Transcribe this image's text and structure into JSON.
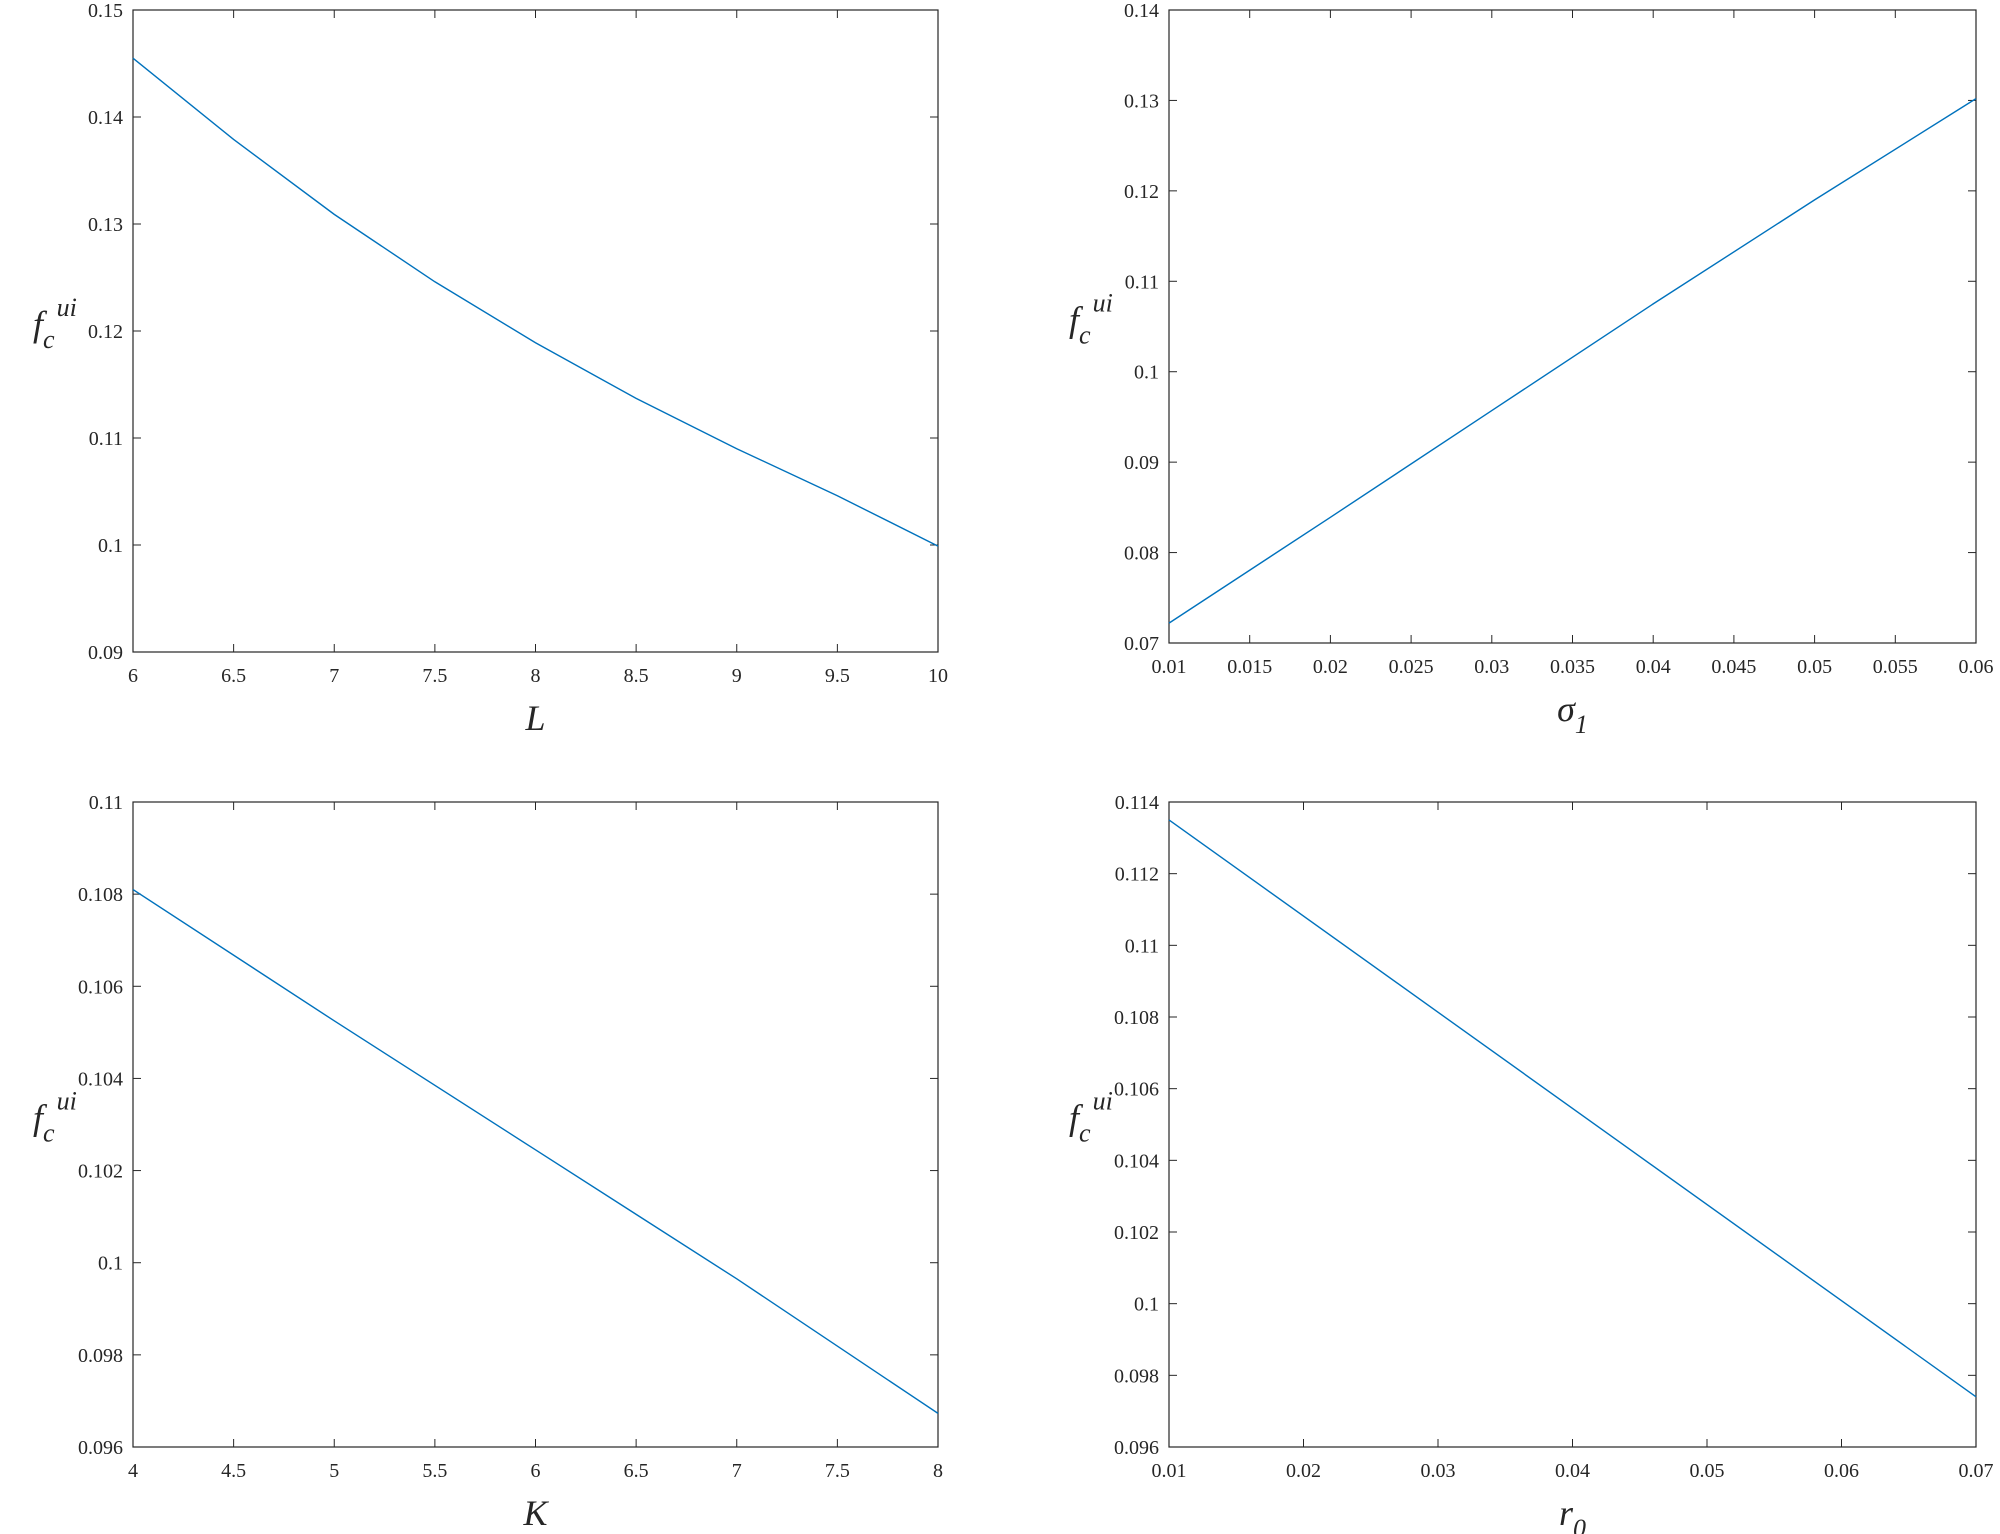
{
  "chart_data": [
    {
      "type": "line",
      "xlabel": "L",
      "ylabel": {
        "base": "f",
        "sub": "c",
        "sup": "ui"
      },
      "xlim": [
        6,
        10
      ],
      "ylim": [
        0.09,
        0.15
      ],
      "xticks": [
        "6",
        "6.5",
        "7",
        "7.5",
        "8",
        "8.5",
        "9",
        "9.5",
        "10"
      ],
      "yticks": [
        "0.09",
        "0.1",
        "0.11",
        "0.12",
        "0.13",
        "0.14",
        "0.15"
      ],
      "grid": false,
      "series": [
        {
          "color": "#0072BD",
          "x": [
            6,
            6.5,
            7,
            7.5,
            8,
            8.5,
            9,
            9.5,
            10
          ],
          "y": [
            0.1455,
            0.1379,
            0.1309,
            0.1246,
            0.1189,
            0.1137,
            0.109,
            0.1046,
            0.0999
          ]
        }
      ]
    },
    {
      "type": "line",
      "xlabel": {
        "base": "σ",
        "sub": "1"
      },
      "ylabel": {
        "base": "f",
        "sub": "c",
        "sup": "ui"
      },
      "xlim": [
        0.01,
        0.06
      ],
      "ylim": [
        0.07,
        0.14
      ],
      "xticks": [
        "0.01",
        "0.015",
        "0.02",
        "0.025",
        "0.03",
        "0.035",
        "0.04",
        "0.045",
        "0.05",
        "0.055",
        "0.06"
      ],
      "yticks": [
        "0.07",
        "0.08",
        "0.09",
        "0.1",
        "0.11",
        "0.12",
        "0.13",
        "0.14"
      ],
      "grid": false,
      "series": [
        {
          "color": "#0072BD",
          "x": [
            0.01,
            0.02,
            0.03,
            0.04,
            0.05,
            0.06
          ],
          "y": [
            0.0722,
            0.0839,
            0.0957,
            0.1075,
            0.119,
            0.1302
          ]
        }
      ]
    },
    {
      "type": "line",
      "xlabel": "K",
      "ylabel": {
        "base": "f",
        "sub": "c",
        "sup": "ui"
      },
      "xlim": [
        4,
        8
      ],
      "ylim": [
        0.096,
        0.11
      ],
      "xticks": [
        "4",
        "4.5",
        "5",
        "5.5",
        "6",
        "6.5",
        "7",
        "7.5",
        "8"
      ],
      "yticks": [
        "0.096",
        "0.098",
        "0.1",
        "0.102",
        "0.104",
        "0.106",
        "0.108",
        "0.11"
      ],
      "grid": false,
      "series": [
        {
          "color": "#0072BD",
          "x": [
            4,
            5,
            6,
            7,
            8
          ],
          "y": [
            0.1081,
            0.10525,
            0.10245,
            0.09965,
            0.09673
          ]
        }
      ]
    },
    {
      "type": "line",
      "xlabel": {
        "base": "r",
        "sub": "0"
      },
      "ylabel": {
        "base": "f",
        "sub": "c",
        "sup": "ui"
      },
      "xlim": [
        0.01,
        0.07
      ],
      "ylim": [
        0.096,
        0.114
      ],
      "xticks": [
        "0.01",
        "0.02",
        "0.03",
        "0.04",
        "0.05",
        "0.06",
        "0.07"
      ],
      "yticks": [
        "0.096",
        "0.098",
        "0.1",
        "0.102",
        "0.104",
        "0.106",
        "0.108",
        "0.11",
        "0.112",
        "0.114"
      ],
      "grid": false,
      "series": [
        {
          "color": "#0072BD",
          "x": [
            0.01,
            0.07
          ],
          "y": [
            0.1135,
            0.0974
          ]
        }
      ]
    }
  ]
}
